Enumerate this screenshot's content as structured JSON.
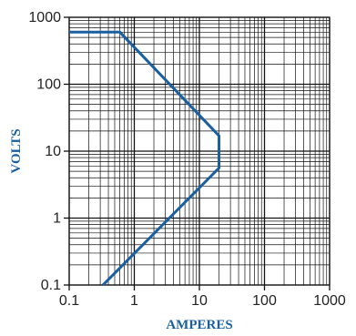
{
  "chart_data": {
    "type": "line",
    "title": "",
    "xlabel": "AMPERES",
    "ylabel": "VOLTS",
    "xscale": "log",
    "yscale": "log",
    "xlim": [
      0.1,
      1000
    ],
    "ylim": [
      0.1,
      1000
    ],
    "grid": "on",
    "x_tick_labels": [
      "0.1",
      "1",
      "10",
      "100",
      "1000"
    ],
    "y_tick_labels": [
      "0.1",
      "1",
      "10",
      "100",
      "1000"
    ],
    "series": [
      {
        "x": [
          0.1,
          0.6,
          20,
          20,
          0.33
        ],
        "y": [
          600,
          600,
          17,
          5.6,
          0.1
        ]
      }
    ],
    "colors": {
      "curve": "#1a5fa0",
      "axis_title": "#1a5fa0",
      "grid": "#111111"
    }
  }
}
